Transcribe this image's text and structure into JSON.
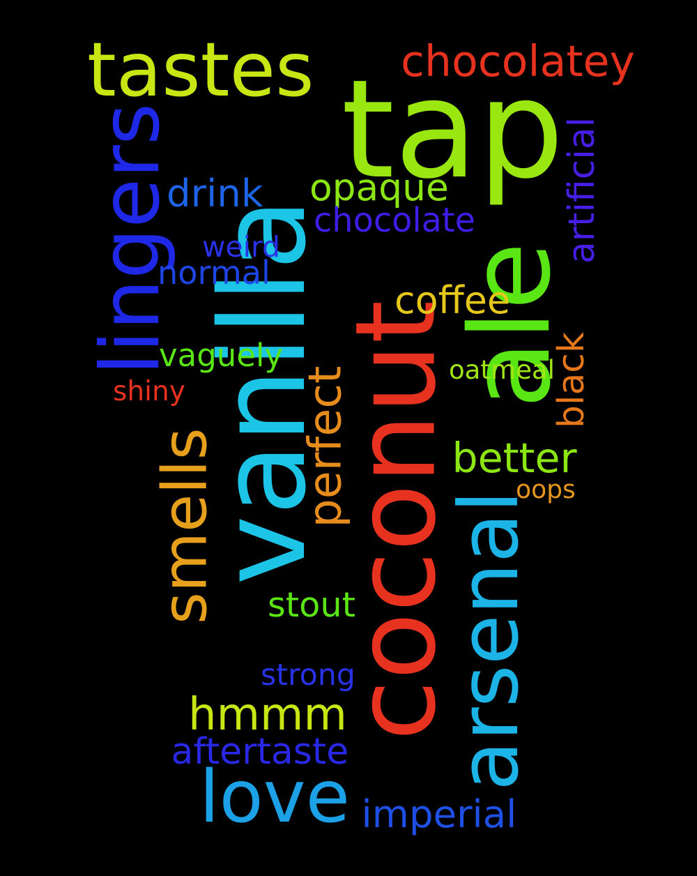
{
  "background": "#000000",
  "words": [
    {
      "key": "tap",
      "text": "tap",
      "color": "#9ae610",
      "weight": 1.0,
      "orientation": "horizontal"
    },
    {
      "key": "vanilla",
      "text": "vanilla",
      "color": "#1cc4e6",
      "weight": 1.0,
      "orientation": "vertical"
    },
    {
      "key": "coconut",
      "text": "coconut",
      "color": "#e6321e",
      "weight": 1.0,
      "orientation": "vertical"
    },
    {
      "key": "ale",
      "text": "ale",
      "color": "#5ae614",
      "weight": 0.8,
      "orientation": "vertical"
    },
    {
      "key": "tastes",
      "text": "tastes",
      "color": "#c8e614",
      "weight": 0.5,
      "orientation": "horizontal"
    },
    {
      "key": "arsenal",
      "text": "arsenal",
      "color": "#1cb4e6",
      "weight": 0.5,
      "orientation": "vertical"
    },
    {
      "key": "lingers",
      "text": "lingers",
      "color": "#1e28e6",
      "weight": 0.45,
      "orientation": "vertical"
    },
    {
      "key": "smells",
      "text": "smells",
      "color": "#e6a01c",
      "weight": 0.45,
      "orientation": "vertical"
    },
    {
      "key": "hmmm",
      "text": "hmmm",
      "color": "#c8e614",
      "weight": 0.45,
      "orientation": "horizontal"
    },
    {
      "key": "love",
      "text": "love",
      "color": "#1ca0e6",
      "weight": 0.45,
      "orientation": "horizontal"
    },
    {
      "key": "chocolatey",
      "text": "chocolatey",
      "color": "#e6321e",
      "weight": 0.3,
      "orientation": "horizontal"
    },
    {
      "key": "perfect",
      "text": "perfect",
      "color": "#e68c1c",
      "weight": 0.3,
      "orientation": "vertical"
    },
    {
      "key": "opaque",
      "text": "opaque",
      "color": "#8ce614",
      "weight": 0.25,
      "orientation": "horizontal"
    },
    {
      "key": "artificial",
      "text": "artificial",
      "color": "#461ee6",
      "weight": 0.25,
      "orientation": "vertical"
    },
    {
      "key": "imperial",
      "text": "imperial",
      "color": "#1e50e6",
      "weight": 0.25,
      "orientation": "horizontal"
    },
    {
      "key": "better",
      "text": "better",
      "color": "#8ce614",
      "weight": 0.25,
      "orientation": "horizontal"
    },
    {
      "key": "drink",
      "text": "drink",
      "color": "#1e64e6",
      "weight": 0.2,
      "orientation": "horizontal"
    },
    {
      "key": "chocolate",
      "text": "chocolate",
      "color": "#3c1ee6",
      "weight": 0.2,
      "orientation": "horizontal"
    },
    {
      "key": "normal",
      "text": "normal",
      "color": "#1e46e6",
      "weight": 0.2,
      "orientation": "horizontal"
    },
    {
      "key": "coffee",
      "text": "coffee",
      "color": "#e6c81c",
      "weight": 0.2,
      "orientation": "horizontal"
    },
    {
      "key": "vaguely",
      "text": "vaguely",
      "color": "#5ae614",
      "weight": 0.2,
      "orientation": "horizontal"
    },
    {
      "key": "black",
      "text": "black",
      "color": "#e6781c",
      "weight": 0.2,
      "orientation": "vertical"
    },
    {
      "key": "stout",
      "text": "stout",
      "color": "#5ae614",
      "weight": 0.2,
      "orientation": "horizontal"
    },
    {
      "key": "aftertaste",
      "text": "aftertaste",
      "color": "#2828e6",
      "weight": 0.2,
      "orientation": "horizontal"
    },
    {
      "key": "weird",
      "text": "weird",
      "color": "#2832e6",
      "weight": 0.15,
      "orientation": "horizontal"
    },
    {
      "key": "oatmeal",
      "text": "oatmeal",
      "color": "#a0e614",
      "weight": 0.15,
      "orientation": "horizontal"
    },
    {
      "key": "shiny",
      "text": "shiny",
      "color": "#e6321e",
      "weight": 0.15,
      "orientation": "horizontal"
    },
    {
      "key": "oops",
      "text": "oops",
      "color": "#e6961c",
      "weight": 0.15,
      "orientation": "horizontal"
    },
    {
      "key": "strong",
      "text": "strong",
      "color": "#2832e6",
      "weight": 0.15,
      "orientation": "horizontal"
    }
  ]
}
